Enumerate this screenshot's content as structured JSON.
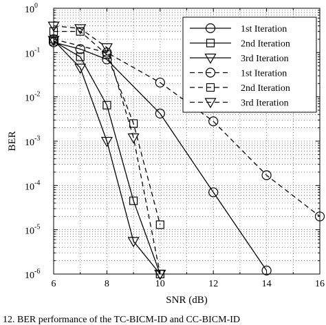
{
  "chart_data": {
    "type": "line",
    "xlabel": "SNR (dB)",
    "ylabel": "BER",
    "xlim": [
      6,
      16
    ],
    "ylim": [
      1e-06,
      1
    ],
    "yscale": "log",
    "grid": true,
    "legend_position": "top-right",
    "x_ticks": [
      "6",
      "8",
      "10",
      "12",
      "14",
      "16"
    ],
    "y_ticks": [
      {
        "base": "10",
        "exp": "0"
      },
      {
        "base": "10",
        "exp": "-1"
      },
      {
        "base": "10",
        "exp": "-2"
      },
      {
        "base": "10",
        "exp": "-3"
      },
      {
        "base": "10",
        "exp": "-4"
      },
      {
        "base": "10",
        "exp": "-5"
      },
      {
        "base": "10",
        "exp": "-6"
      }
    ],
    "series": [
      {
        "name": "1st Iteration",
        "marker": "circle",
        "dash": "solid",
        "x": [
          6,
          7,
          8,
          10,
          12,
          14
        ],
        "y": [
          0.17,
          0.12,
          0.07,
          0.0042,
          7e-05,
          1.2e-06
        ]
      },
      {
        "name": "2nd Iteration",
        "marker": "square",
        "dash": "solid",
        "x": [
          6,
          7,
          8,
          9,
          10
        ],
        "y": [
          0.18,
          0.08,
          0.0065,
          4.5e-05,
          1e-06
        ]
      },
      {
        "name": "3rd Iteration",
        "marker": "triangle-down",
        "dash": "solid",
        "x": [
          6,
          7,
          8,
          9,
          10
        ],
        "y": [
          0.19,
          0.045,
          0.001,
          5.5e-06,
          1e-06
        ]
      },
      {
        "name": "1st Iteration",
        "marker": "circle",
        "dash": "dashed",
        "x": [
          6,
          8,
          10,
          12,
          14,
          16
        ],
        "y": [
          0.2,
          0.1,
          0.021,
          0.0028,
          0.00017,
          2e-05
        ]
      },
      {
        "name": "2nd Iteration",
        "marker": "square",
        "dash": "dashed",
        "x": [
          6,
          7,
          8,
          9,
          10
        ],
        "y": [
          0.3,
          0.3,
          0.09,
          0.0025,
          1.3e-05
        ]
      },
      {
        "name": "3rd Iteration",
        "marker": "triangle-down",
        "dash": "dashed",
        "x": [
          6,
          7,
          8,
          9,
          10
        ],
        "y": [
          0.4,
          0.35,
          0.13,
          0.0012,
          1e-06
        ]
      }
    ],
    "caption": "12.    BER performance of the TC-BICM-ID and CC-BICM-ID"
  }
}
